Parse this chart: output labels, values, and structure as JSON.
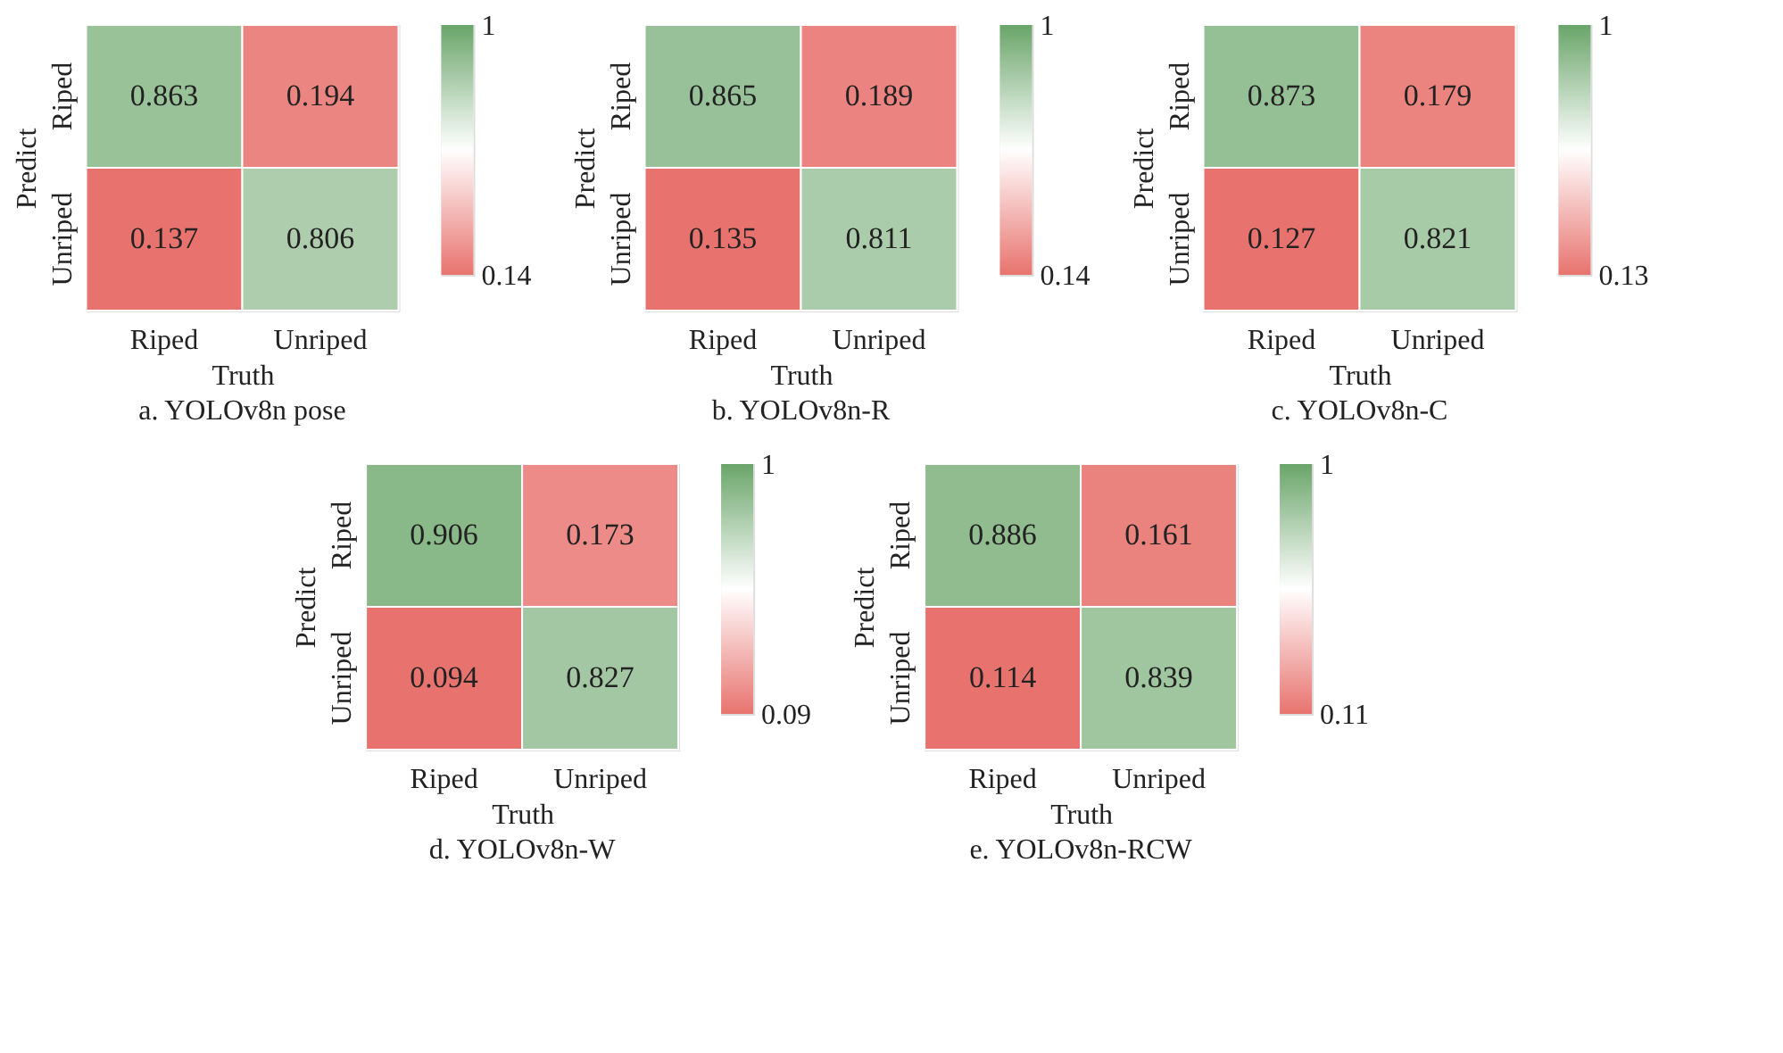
{
  "chart_data": [
    {
      "type": "heatmap",
      "title": "a. YOLOv8n pose",
      "xlabel": "Truth",
      "ylabel": "Predict",
      "categories": [
        "Riped",
        "Unriped"
      ],
      "y_categories": [
        "Riped",
        "Unriped"
      ],
      "cells": [
        [
          0.863,
          0.194
        ],
        [
          0.137,
          0.806
        ]
      ],
      "data_labels": true,
      "clim": [
        0.137,
        1
      ],
      "cticks": [
        {
          "value": 0.137,
          "label": "0.14"
        },
        1
      ]
    },
    {
      "type": "heatmap",
      "title": "b. YOLOv8n-R",
      "xlabel": "Truth",
      "ylabel": "Predict",
      "categories": [
        "Riped",
        "Unriped"
      ],
      "y_categories": [
        "Riped",
        "Unriped"
      ],
      "cells": [
        [
          0.865,
          0.189
        ],
        [
          0.135,
          0.811
        ]
      ],
      "data_labels": true,
      "clim": [
        0.135,
        1
      ],
      "cticks": [
        {
          "value": 0.135,
          "label": "0.14"
        },
        1
      ]
    },
    {
      "type": "heatmap",
      "title": "c. YOLOv8n-C",
      "xlabel": "Truth",
      "ylabel": "Predict",
      "categories": [
        "Riped",
        "Unriped"
      ],
      "y_categories": [
        "Riped",
        "Unriped"
      ],
      "cells": [
        [
          0.873,
          0.179
        ],
        [
          0.127,
          0.821
        ]
      ],
      "data_labels": true,
      "clim": [
        0.127,
        1
      ],
      "cticks": [
        {
          "value": 0.127,
          "label": "0.13"
        },
        1
      ]
    },
    {
      "type": "heatmap",
      "title": "d. YOLOv8n-W",
      "xlabel": "Truth",
      "ylabel": "Predict",
      "categories": [
        "Riped",
        "Unriped"
      ],
      "y_categories": [
        "Riped",
        "Unriped"
      ],
      "cells": [
        [
          0.906,
          0.173
        ],
        [
          0.094,
          0.827
        ]
      ],
      "data_labels": true,
      "clim": [
        0.094,
        1
      ],
      "cticks": [
        {
          "value": 0.094,
          "label": "0.09"
        },
        1
      ]
    },
    {
      "type": "heatmap",
      "title": "e. YOLOv8n-RCW",
      "xlabel": "Truth",
      "ylabel": "Predict",
      "categories": [
        "Riped",
        "Unriped"
      ],
      "y_categories": [
        "Riped",
        "Unriped"
      ],
      "cells": [
        [
          0.886,
          0.161
        ],
        [
          0.114,
          0.839
        ]
      ],
      "data_labels": true,
      "clim": [
        0.114,
        1
      ],
      "cticks": [
        {
          "value": 0.114,
          "label": "0.11"
        },
        1
      ]
    }
  ]
}
